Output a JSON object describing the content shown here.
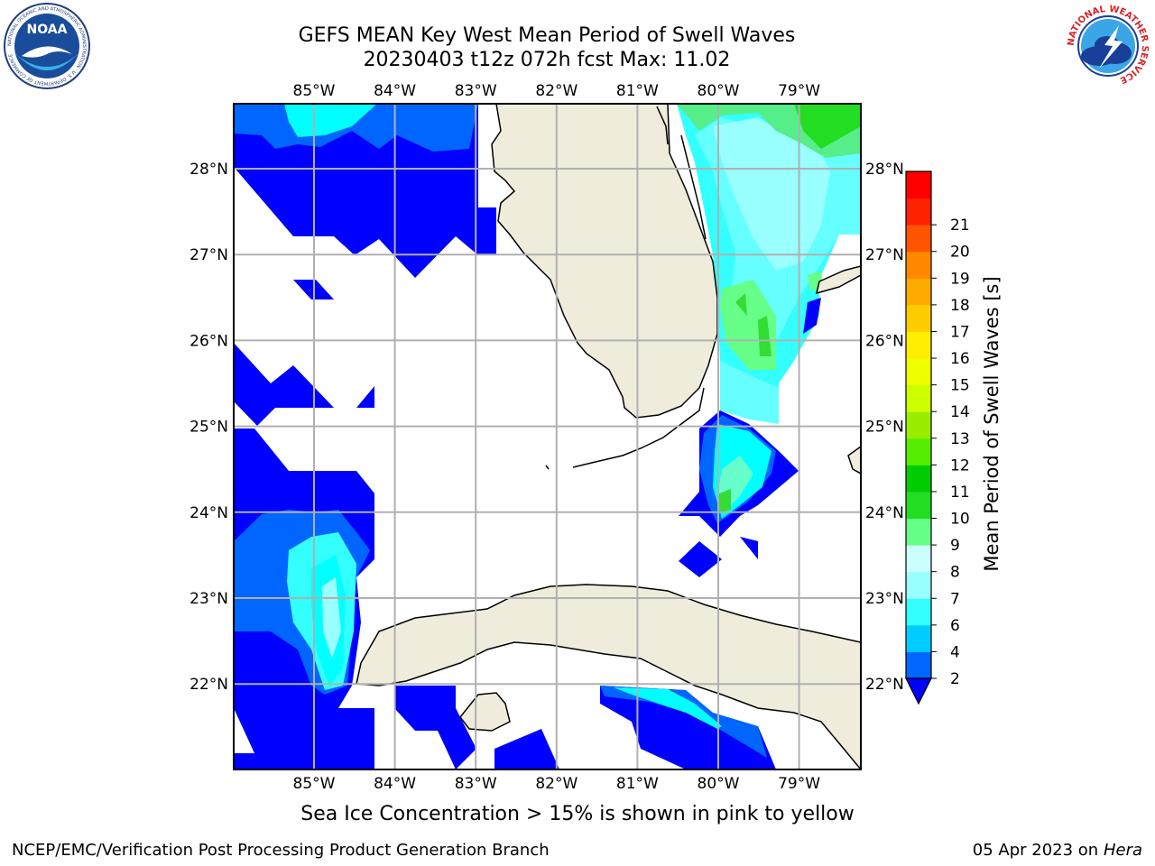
{
  "header": {
    "title_line1": "GEFS MEAN Key West Mean Period of Swell Waves",
    "title_line2": "20230403 t12z 072h fcst   Max: 11.02"
  },
  "logos": {
    "noaa_text": "NOAA",
    "noaa_ring_text": "NATIONAL OCEANIC AND ATMOSPHERIC ADMINISTRATION · U.S. DEPARTMENT OF COMMERCE",
    "nws_ring_text": "NATIONAL WEATHER SERVICE"
  },
  "map": {
    "lon_labels": [
      "85°W",
      "84°W",
      "83°W",
      "82°W",
      "81°W",
      "80°W",
      "79°W"
    ],
    "lat_labels": [
      "28°N",
      "27°N",
      "26°N",
      "25°N",
      "24°N",
      "23°N",
      "22°N"
    ],
    "land_color": "#efecdc",
    "grid_color": "#b0b0b0"
  },
  "colorbar": {
    "label": "Mean Period of Swell Waves [s]",
    "ticks": [
      "2",
      "4",
      "6",
      "7",
      "8",
      "9",
      "10",
      "11",
      "12",
      "13",
      "14",
      "15",
      "16",
      "17",
      "18",
      "19",
      "20",
      "21"
    ],
    "colors": [
      "#0066ff",
      "#00ccff",
      "#33ffff",
      "#99ffff",
      "#ccffff",
      "#66ff88",
      "#22dd22",
      "#00cc00",
      "#55ee00",
      "#99ee00",
      "#ccff00",
      "#eeff00",
      "#ffee00",
      "#ffcc00",
      "#ffaa00",
      "#ff8800",
      "#ff5500",
      "#ff2200",
      "#ff0000"
    ],
    "under_color": "#0000ff"
  },
  "note": "Sea Ice Concentration > 15% is shown in pink to yellow",
  "footer": {
    "left": "NCEP/EMC/Verification Post Processing Product Generation Branch",
    "date": "05 Apr 2023 on",
    "machine": "Hera"
  }
}
